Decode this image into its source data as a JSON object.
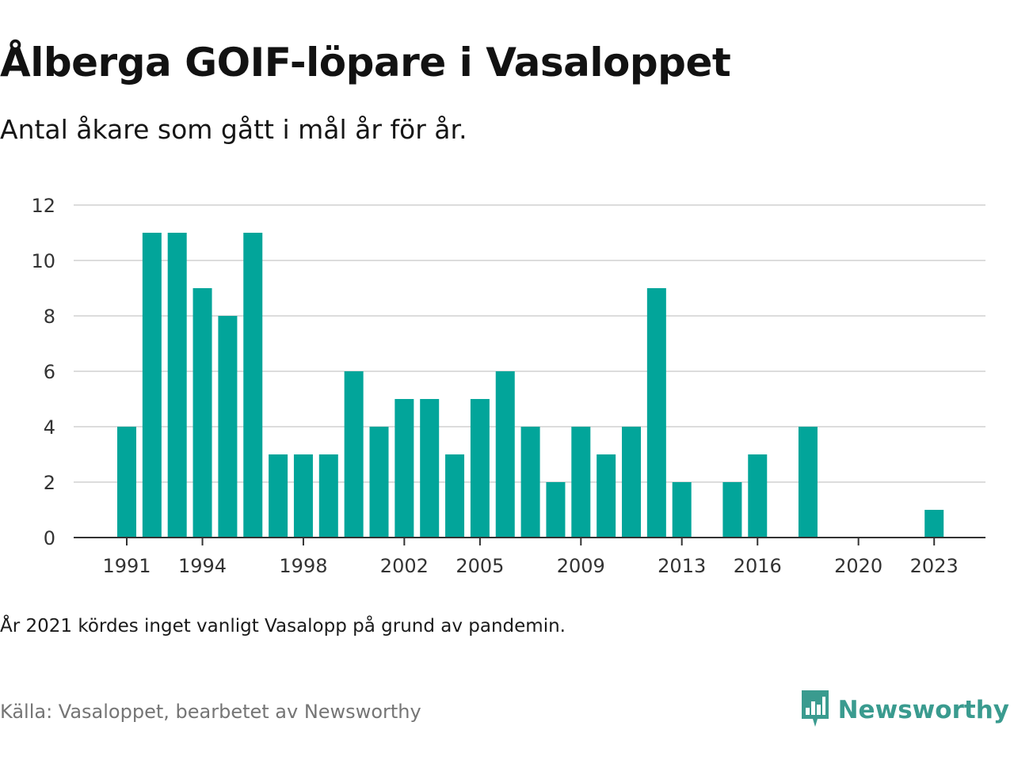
{
  "title": "Ålberga GOIF-löpare i Vasaloppet",
  "subtitle": "Antal åkare som gått i mål år för år.",
  "note": "År 2021 kördes inget vanligt Vasalopp på grund av pandemin.",
  "source": "Källa: Vasaloppet, bearbetet av Newsworthy",
  "brand": {
    "name": "Newsworthy",
    "icon": "newsworthy-logo-icon",
    "color": "#3a9b8f"
  },
  "chart_data": {
    "type": "bar",
    "categories": [
      1991,
      1992,
      1993,
      1994,
      1995,
      1996,
      1997,
      1998,
      1999,
      2000,
      2001,
      2002,
      2003,
      2004,
      2005,
      2006,
      2007,
      2008,
      2009,
      2010,
      2011,
      2012,
      2013,
      2014,
      2015,
      2016,
      2017,
      2018,
      2019,
      2020,
      2021,
      2022,
      2023
    ],
    "values": [
      4,
      11,
      11,
      9,
      8,
      11,
      3,
      3,
      3,
      6,
      4,
      5,
      5,
      3,
      5,
      6,
      4,
      2,
      4,
      3,
      4,
      9,
      2,
      0,
      2,
      3,
      0,
      4,
      0,
      0,
      0,
      0,
      1
    ],
    "x_tick_labels": [
      "1991",
      "1994",
      "1998",
      "2002",
      "2005",
      "2009",
      "2013",
      "2016",
      "2020",
      "2023"
    ],
    "y_ticks": [
      0,
      2,
      4,
      6,
      8,
      10,
      12
    ],
    "ylim": [
      0,
      12
    ],
    "xlabel": "",
    "ylabel": "",
    "grid": true,
    "bar_color": "#02a59a"
  }
}
